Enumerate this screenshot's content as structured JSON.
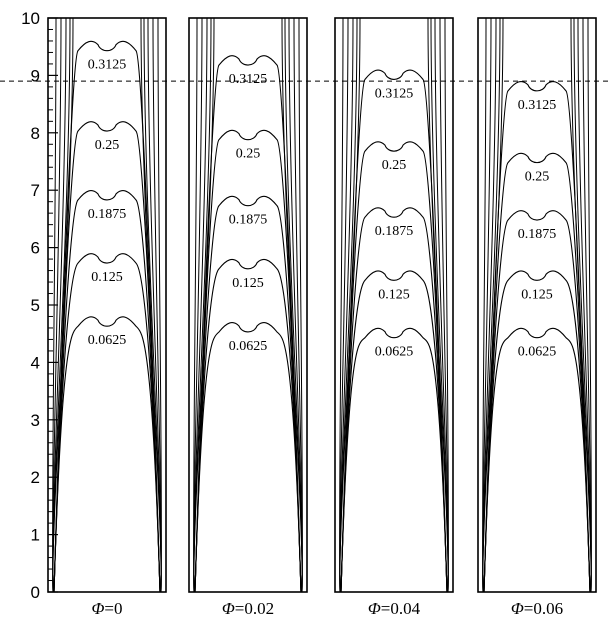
{
  "chart_data": {
    "type": "contour",
    "y_axis": {
      "range": [
        0,
        10
      ],
      "ticks": [
        "0",
        "1",
        "2",
        "3",
        "4",
        "5",
        "6",
        "7",
        "8",
        "9",
        "10"
      ]
    },
    "reference_line_y": 8.9,
    "contour_levels": [
      "0.0625",
      "0.125",
      "0.1875",
      "0.25",
      "0.3125"
    ],
    "panels": [
      {
        "label_symbol": "Φ",
        "label_value": "=0",
        "contours": [
          {
            "level": "0.0625",
            "y": 4.7
          },
          {
            "level": "0.125",
            "y": 5.8
          },
          {
            "level": "0.1875",
            "y": 6.9
          },
          {
            "level": "0.25",
            "y": 8.1
          },
          {
            "level": "0.3125",
            "y": 9.5
          }
        ]
      },
      {
        "label_symbol": "Φ",
        "label_value": "=0.02",
        "contours": [
          {
            "level": "0.0625",
            "y": 4.6
          },
          {
            "level": "0.125",
            "y": 5.7
          },
          {
            "level": "0.1875",
            "y": 6.8
          },
          {
            "level": "0.25",
            "y": 7.95
          },
          {
            "level": "0.3125",
            "y": 9.25
          }
        ]
      },
      {
        "label_symbol": "Φ",
        "label_value": "=0.04",
        "contours": [
          {
            "level": "0.0625",
            "y": 4.5
          },
          {
            "level": "0.125",
            "y": 5.5
          },
          {
            "level": "0.1875",
            "y": 6.6
          },
          {
            "level": "0.25",
            "y": 7.75
          },
          {
            "level": "0.3125",
            "y": 9.0
          }
        ]
      },
      {
        "label_symbol": "Φ",
        "label_value": "=0.06",
        "contours": [
          {
            "level": "0.0625",
            "y": 4.5
          },
          {
            "level": "0.125",
            "y": 5.5
          },
          {
            "level": "0.1875",
            "y": 6.55
          },
          {
            "level": "0.25",
            "y": 7.55
          },
          {
            "level": "0.3125",
            "y": 8.8
          }
        ]
      }
    ]
  }
}
